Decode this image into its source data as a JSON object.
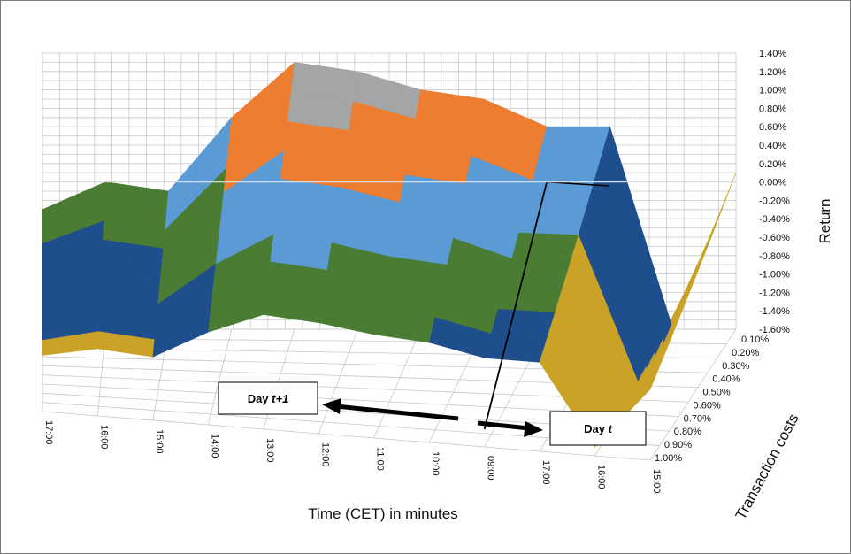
{
  "chart_data": {
    "type": "surface",
    "title": "",
    "xlabel": "Time (CET) in minutes",
    "ylabel": "Transaction costs",
    "zlabel": "Return",
    "x_ticks": [
      "17:00",
      "16:00",
      "15:00",
      "14:00",
      "13:00",
      "12:00",
      "11:00",
      "10:00",
      "09:00",
      "17:00",
      "16:00",
      "15:00"
    ],
    "y_ticks": [
      "0.10%",
      "0.20%",
      "0.30%",
      "0.40%",
      "0.50%",
      "0.60%",
      "0.70%",
      "0.80%",
      "0.90%",
      "1.00%"
    ],
    "z_ticks": [
      "1.40%",
      "1.20%",
      "1.00%",
      "0.80%",
      "0.60%",
      "0.40%",
      "0.20%",
      "0.00%",
      "-0.20%",
      "-0.40%",
      "-0.60%",
      "-0.80%",
      "-1.00%",
      "-1.20%",
      "-1.40%",
      "-1.60%"
    ],
    "zlim": [
      -1.6,
      1.4
    ],
    "band_colors": [
      "#8c8c8c",
      "#c9a227",
      "#1f4e8c",
      "#4a7c34",
      "#5a9bd5",
      "#ed7d31",
      "#a5a5a5"
    ],
    "back_row_values": [
      -0.3,
      0.0,
      -0.1,
      0.7,
      1.3,
      1.2,
      1.0,
      0.9,
      0.6,
      0.6,
      -1.6,
      0.1
    ],
    "annotations": [
      {
        "prefix": "Day ",
        "var": "t+1",
        "direction": "left"
      },
      {
        "prefix": "Day ",
        "var": "t",
        "direction": "right"
      }
    ]
  }
}
